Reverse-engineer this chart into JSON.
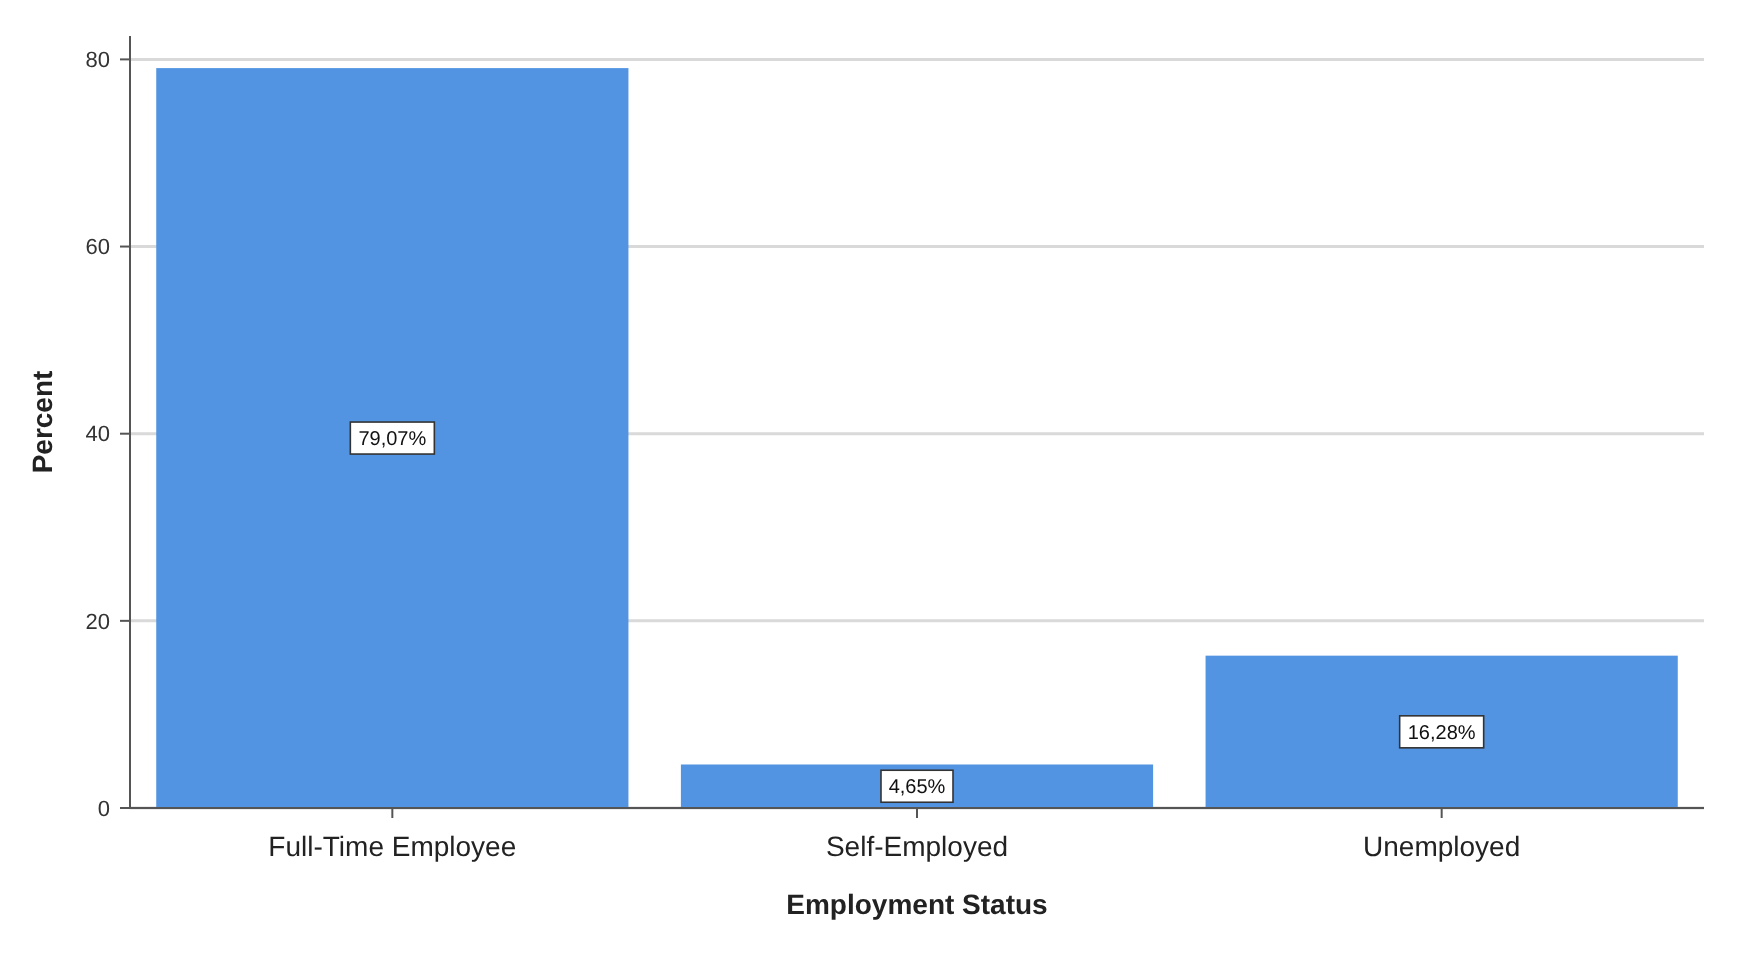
{
  "chart_data": {
    "type": "bar",
    "xlabel": "Employment Status",
    "ylabel": "Percent",
    "categories": [
      "Full-Time Employee",
      "Self-Employed",
      "Unemployed"
    ],
    "values": [
      79.07,
      4.65,
      16.28
    ],
    "value_labels": [
      "79,07%",
      "4,65%",
      "16,28%"
    ],
    "color": "#5294e2",
    "ylim": [
      0,
      82.5
    ],
    "yticks": [
      0,
      20,
      40,
      60,
      80
    ],
    "grid": "y"
  }
}
